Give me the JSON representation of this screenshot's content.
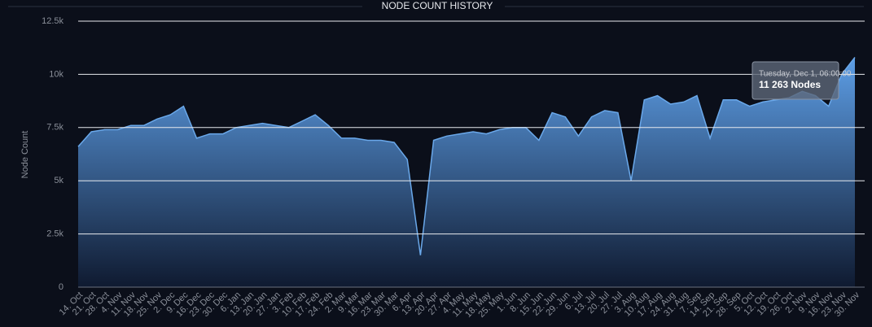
{
  "chart_data": {
    "type": "area",
    "title": "NODE COUNT HISTORY",
    "y_label": "Node Count",
    "categories": [
      "14. Oct",
      "21. Oct",
      "28. Oct",
      "4. Nov",
      "11. Nov",
      "18. Nov",
      "25. Nov",
      "2. Dec",
      "9. Dec",
      "16. Dec",
      "23. Dec",
      "30. Dec",
      "6. Jan",
      "13. Jan",
      "20. Jan",
      "27. Jan",
      "3. Feb",
      "10. Feb",
      "17. Feb",
      "24. Feb",
      "2. Mar",
      "9. Mar",
      "16. Mar",
      "23. Mar",
      "30. Mar",
      "6. Apr",
      "13. Apr",
      "20. Apr",
      "27. Apr",
      "4. May",
      "11. May",
      "18. May",
      "25. May",
      "1. Jun",
      "8. Jun",
      "15. Jun",
      "22. Jun",
      "29. Jun",
      "6. Jul",
      "13. Jul",
      "20. Jul",
      "27. Jul",
      "3. Aug",
      "10. Aug",
      "17. Aug",
      "24. Aug",
      "31. Aug",
      "7. Sep",
      "14. Sep",
      "21. Sep",
      "28. Sep",
      "5. Oct",
      "12. Oct",
      "19. Oct",
      "26. Oct",
      "2. Nov",
      "9. Nov",
      "16. Nov",
      "23. Nov",
      "30. Nov"
    ],
    "series": [
      {
        "name": "Nodes",
        "color": "#6aa8ea",
        "values": [
          6600,
          7300,
          7400,
          7400,
          7600,
          7600,
          7900,
          8100,
          8500,
          7000,
          7200,
          7200,
          7500,
          7600,
          7700,
          7600,
          7500,
          7800,
          8100,
          7600,
          7000,
          7000,
          6900,
          6900,
          6800,
          6000,
          1500,
          6900,
          7100,
          7200,
          7300,
          7200,
          7400,
          7500,
          7500,
          6900,
          8200,
          8000,
          7100,
          8000,
          8300,
          8200,
          5000,
          8800,
          9000,
          8600,
          8700,
          9000,
          7000,
          8800,
          8800,
          8500,
          8700,
          8800,
          8900,
          9200,
          9000,
          8500,
          10000,
          10800
        ]
      }
    ],
    "ylim": [
      0,
      12500
    ],
    "yticks": [
      {
        "value": 0,
        "label": "0"
      },
      {
        "value": 2500,
        "label": "2.5k"
      },
      {
        "value": 5000,
        "label": "5k"
      },
      {
        "value": 7500,
        "label": "7.5k"
      },
      {
        "value": 10000,
        "label": "10k"
      },
      {
        "value": 12500,
        "label": "12.5k"
      }
    ],
    "grid": true,
    "tooltip": {
      "date": "Tuesday, Dec 1, 06:00:00",
      "text": "11 263 Nodes"
    }
  }
}
